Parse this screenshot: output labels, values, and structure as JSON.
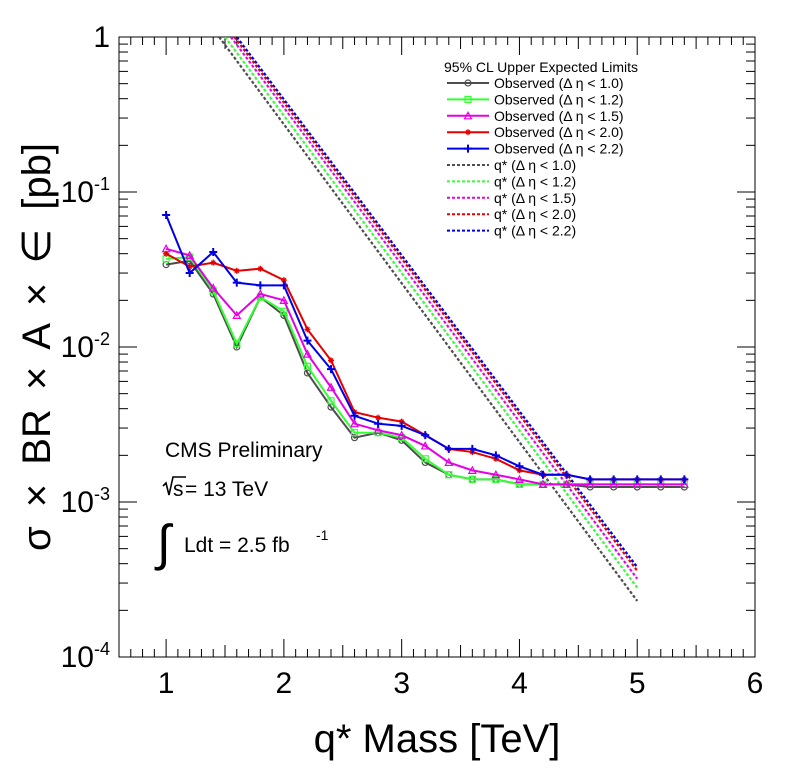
{
  "chart_data": {
    "type": "line",
    "xlabel": "q* Mass [TeV]",
    "ylabel_parts": {
      "sigma": "σ",
      "times": "×",
      "br": "BR",
      "a": "A",
      "eps": "∈",
      "unit": "[pb]"
    },
    "y_scale": "log",
    "xlim": [
      0.6,
      6.0
    ],
    "ylim": [
      0.0001,
      1
    ],
    "x_ticks": [
      "1",
      "2",
      "3",
      "4",
      "5",
      "6"
    ],
    "y_ticks": [
      {
        "base": "10",
        "exp": "-4",
        "value": 0.0001
      },
      {
        "base": "10",
        "exp": "-3",
        "value": 0.001
      },
      {
        "base": "10",
        "exp": "-2",
        "value": 0.01
      },
      {
        "base": "10",
        "exp": "-1",
        "value": 0.1
      },
      {
        "base": "1",
        "exp": "",
        "value": 1
      }
    ],
    "legend_title": "95% CL Upper Expected Limits",
    "legend_position": "top-right",
    "annotations": {
      "cms": "CMS Preliminary",
      "sqrt_s_label": "s",
      "energy": " = 13 TeV",
      "integral": "∫",
      "lumi_main": "Ldt = 2.5 fb",
      "lumi_exp": "-1"
    },
    "observed_series": [
      {
        "name": "Observed (Δ η < 1.0)",
        "color": "#4d4d4d",
        "marker": "circle",
        "x": [
          1.0,
          1.2,
          1.4,
          1.6,
          1.8,
          2.0,
          2.2,
          2.4,
          2.6,
          2.8,
          3.0,
          3.2,
          3.4,
          3.6,
          3.8,
          4.0,
          4.2,
          4.4,
          4.6,
          4.8,
          5.0,
          5.2,
          5.4
        ],
        "y": [
          0.034,
          0.036,
          0.022,
          0.01,
          0.021,
          0.016,
          0.0068,
          0.0041,
          0.0026,
          0.0028,
          0.0025,
          0.0018,
          0.0015,
          0.0014,
          0.0014,
          0.0013,
          0.0013,
          0.0013,
          0.00125,
          0.00125,
          0.00125,
          0.00125,
          0.00125
        ]
      },
      {
        "name": "Observed (Δ η < 1.2)",
        "color": "#33ff33",
        "marker": "square",
        "x": [
          1.0,
          1.2,
          1.4,
          1.6,
          1.8,
          2.0,
          2.2,
          2.4,
          2.6,
          2.8,
          3.0,
          3.2,
          3.4,
          3.6,
          3.8,
          4.0,
          4.2,
          4.4,
          4.6,
          4.8,
          5.0,
          5.2,
          5.4
        ],
        "y": [
          0.037,
          0.038,
          0.023,
          0.0105,
          0.021,
          0.017,
          0.0075,
          0.0045,
          0.0028,
          0.0028,
          0.0026,
          0.0019,
          0.0015,
          0.0014,
          0.0014,
          0.0013,
          0.0013,
          0.0013,
          0.0013,
          0.0013,
          0.0013,
          0.0013,
          0.0013
        ]
      },
      {
        "name": "Observed (Δ η < 1.5)",
        "color": "#e600e6",
        "marker": "triangle",
        "x": [
          1.0,
          1.2,
          1.4,
          1.6,
          1.8,
          2.0,
          2.2,
          2.4,
          2.6,
          2.8,
          3.0,
          3.2,
          3.4,
          3.6,
          3.8,
          4.0,
          4.2,
          4.4,
          4.6,
          4.8,
          5.0,
          5.2,
          5.4
        ],
        "y": [
          0.043,
          0.039,
          0.024,
          0.016,
          0.022,
          0.02,
          0.009,
          0.0055,
          0.0032,
          0.0029,
          0.0027,
          0.0023,
          0.0018,
          0.0016,
          0.0015,
          0.0014,
          0.0013,
          0.0013,
          0.0013,
          0.0013,
          0.0013,
          0.0013,
          0.0013
        ]
      },
      {
        "name": "Observed (Δ η < 2.0)",
        "color": "#e60000",
        "marker": "star",
        "x": [
          1.0,
          1.2,
          1.4,
          1.6,
          1.8,
          2.0,
          2.2,
          2.4,
          2.6,
          2.8,
          3.0,
          3.2,
          3.4,
          3.6,
          3.8,
          4.0,
          4.2,
          4.4,
          4.6,
          4.8,
          5.0,
          5.2,
          5.4
        ],
        "y": [
          0.04,
          0.033,
          0.035,
          0.031,
          0.032,
          0.027,
          0.013,
          0.0082,
          0.0038,
          0.0035,
          0.0033,
          0.0027,
          0.0022,
          0.0021,
          0.0019,
          0.0016,
          0.0015,
          0.0015,
          0.0014,
          0.0014,
          0.0014,
          0.0014,
          0.0014
        ]
      },
      {
        "name": "Observed (Δ η < 2.2)",
        "color": "#0000e6",
        "marker": "cross",
        "x": [
          1.0,
          1.2,
          1.4,
          1.6,
          1.8,
          2.0,
          2.2,
          2.4,
          2.6,
          2.8,
          3.0,
          3.2,
          3.4,
          3.6,
          3.8,
          4.0,
          4.2,
          4.4,
          4.6,
          4.8,
          5.0,
          5.2,
          5.4
        ],
        "y": [
          0.071,
          0.03,
          0.041,
          0.026,
          0.025,
          0.025,
          0.011,
          0.0072,
          0.0036,
          0.0032,
          0.0031,
          0.0027,
          0.0022,
          0.0022,
          0.002,
          0.0017,
          0.0015,
          0.0015,
          0.0014,
          0.0014,
          0.0014,
          0.0014,
          0.0014
        ]
      }
    ],
    "theory_series": [
      {
        "name": "q* (Δ η < 1.0)",
        "color": "#4d4d4d",
        "x": [
          1.45,
          5.0
        ],
        "y": [
          1.0,
          0.00023
        ]
      },
      {
        "name": "q* (Δ η < 1.2)",
        "color": "#33ff33",
        "x": [
          1.5,
          5.0
        ],
        "y": [
          1.0,
          0.00028
        ]
      },
      {
        "name": "q* (Δ η < 1.5)",
        "color": "#e600e6",
        "x": [
          1.55,
          5.0
        ],
        "y": [
          1.0,
          0.00032
        ]
      },
      {
        "name": "q* (Δ η < 2.0)",
        "color": "#e60000",
        "x": [
          1.58,
          5.0
        ],
        "y": [
          1.0,
          0.00036
        ]
      },
      {
        "name": "q* (Δ η < 2.2)",
        "color": "#0000e6",
        "x": [
          1.6,
          5.0
        ],
        "y": [
          1.0,
          0.00038
        ]
      }
    ]
  }
}
